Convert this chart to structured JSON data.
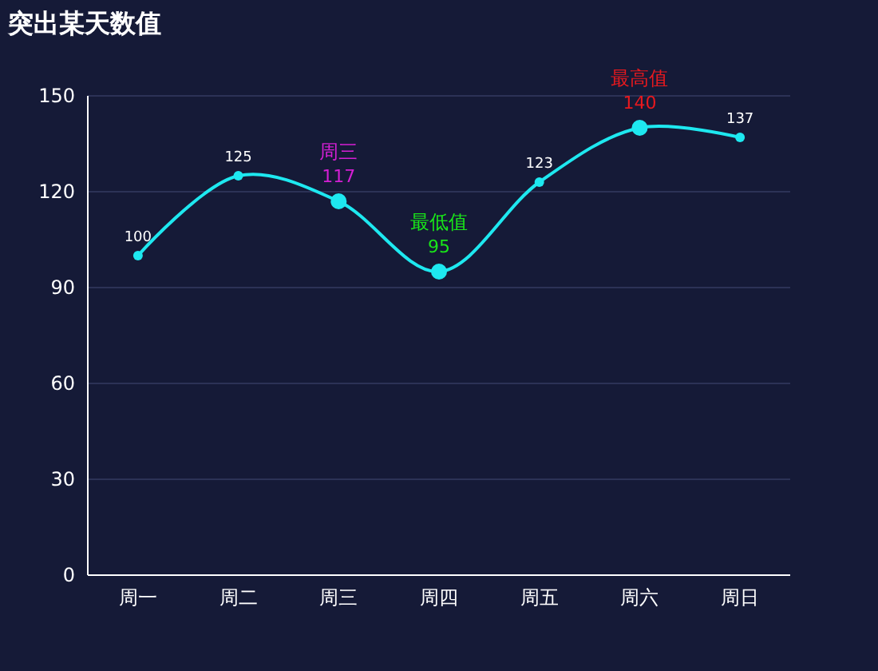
{
  "chart_data": {
    "type": "line",
    "title": "突出某天数值",
    "categories": [
      "周一",
      "周二",
      "周三",
      "周四",
      "周五",
      "周六",
      "周日"
    ],
    "series": [
      {
        "color": "#1ee8f0",
        "values": [
          100,
          125,
          117,
          95,
          123,
          140,
          137
        ]
      }
    ],
    "ylim": [
      0,
      150
    ],
    "yticks": [
      0,
      30,
      60,
      90,
      120,
      150
    ],
    "grid": "y",
    "marker": "circle",
    "data_labels": true,
    "annotations": [
      {
        "text": "最高值",
        "x": "周六",
        "y": 140
      },
      {
        "text": "最低值",
        "x": "周四",
        "y": 95
      },
      {
        "text": "周三",
        "x": "周三",
        "y": 117
      }
    ]
  }
}
